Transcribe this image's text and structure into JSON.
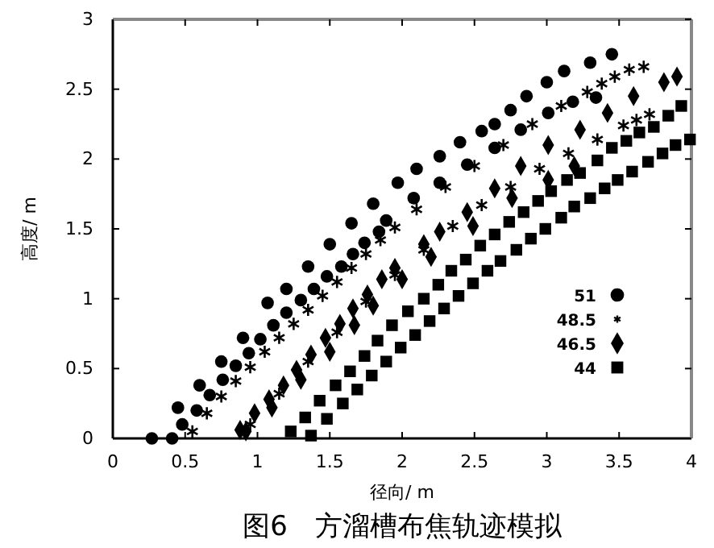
{
  "chart_data": {
    "type": "scatter",
    "title": "图6　方溜槽布焦轨迹模拟",
    "xlabel": "径向/ m",
    "ylabel": "高度/ m",
    "xlim": [
      0,
      4
    ],
    "ylim": [
      0,
      3
    ],
    "xticks": [
      0,
      0.5,
      1,
      1.5,
      2,
      2.5,
      3,
      3.5,
      4
    ],
    "yticks": [
      0,
      0.5,
      1,
      1.5,
      2,
      2.5,
      3
    ],
    "legend": "bottom right",
    "grid": false,
    "series": [
      {
        "name": "51",
        "color": "#000000",
        "marker": "circle",
        "x": [
          0.27,
          0.45,
          0.6,
          0.75,
          0.9,
          1.07,
          1.2,
          1.35,
          1.5,
          1.65,
          1.8,
          1.97,
          2.1,
          2.26,
          2.4,
          2.55,
          2.64,
          2.75,
          2.86,
          3.0,
          3.12,
          3.3,
          3.45,
          0.41,
          0.48,
          0.58,
          0.67,
          0.76,
          0.85,
          0.94,
          1.02,
          1.11,
          1.2,
          1.3,
          1.39,
          1.48,
          1.58,
          1.66,
          1.74,
          1.84,
          1.89,
          2.08,
          2.26,
          2.45,
          2.64,
          2.82,
          3.01,
          3.18,
          3.34
        ],
        "values": [
          0,
          0.22,
          0.38,
          0.55,
          0.72,
          0.97,
          1.07,
          1.23,
          1.39,
          1.54,
          1.68,
          1.83,
          1.93,
          2.02,
          2.12,
          2.2,
          2.25,
          2.35,
          2.45,
          2.55,
          2.63,
          2.69,
          2.75,
          0,
          0.1,
          0.2,
          0.31,
          0.42,
          0.52,
          0.61,
          0.71,
          0.81,
          0.9,
          0.99,
          1.07,
          1.16,
          1.23,
          1.32,
          1.4,
          1.48,
          1.56,
          1.72,
          1.83,
          1.96,
          2.08,
          2.21,
          2.33,
          2.41,
          2.44
        ]
      },
      {
        "name": "48.5",
        "color": "#000000",
        "marker": "cross",
        "x": [
          0.55,
          0.65,
          0.75,
          0.85,
          0.95,
          1.05,
          1.15,
          1.25,
          1.35,
          1.45,
          1.55,
          1.65,
          1.75,
          1.85,
          1.95,
          2.1,
          2.3,
          2.5,
          2.7,
          2.9,
          3.1,
          3.28,
          3.38,
          3.47,
          3.57,
          3.67,
          0.95,
          1.15,
          1.35,
          1.55,
          1.75,
          1.95,
          2.15,
          2.35,
          2.55,
          2.75,
          2.95,
          3.15,
          3.35,
          3.53,
          3.62,
          3.71
        ],
        "values": [
          0.05,
          0.18,
          0.3,
          0.41,
          0.51,
          0.62,
          0.72,
          0.82,
          0.92,
          1.02,
          1.12,
          1.22,
          1.32,
          1.42,
          1.51,
          1.64,
          1.8,
          1.95,
          2.1,
          2.25,
          2.38,
          2.48,
          2.54,
          2.59,
          2.64,
          2.66,
          0.1,
          0.32,
          0.55,
          0.76,
          0.98,
          1.17,
          1.35,
          1.52,
          1.67,
          1.8,
          1.93,
          2.04,
          2.14,
          2.24,
          2.28,
          2.32
        ]
      },
      {
        "name": "46.5",
        "color": "#000000",
        "marker": "diamond",
        "x": [
          0.88,
          0.98,
          1.08,
          1.18,
          1.27,
          1.37,
          1.47,
          1.57,
          1.66,
          1.76,
          1.86,
          1.95,
          2.15,
          2.26,
          2.45,
          2.64,
          2.82,
          3.01,
          3.23,
          3.42,
          3.6,
          3.81,
          3.9,
          0.92,
          1.1,
          1.3,
          1.5,
          1.67,
          1.8,
          2.0,
          2.2,
          2.49,
          2.76,
          3.01,
          3.19
        ],
        "values": [
          0.06,
          0.18,
          0.28,
          0.38,
          0.49,
          0.6,
          0.72,
          0.82,
          0.93,
          1.03,
          1.14,
          1.22,
          1.39,
          1.48,
          1.62,
          1.79,
          1.95,
          2.1,
          2.21,
          2.33,
          2.45,
          2.55,
          2.59,
          0.05,
          0.22,
          0.42,
          0.62,
          0.81,
          0.95,
          1.14,
          1.3,
          1.52,
          1.72,
          1.85,
          1.95
        ]
      },
      {
        "name": "44",
        "color": "#000000",
        "marker": "square",
        "x": [
          1.23,
          1.33,
          1.43,
          1.54,
          1.64,
          1.74,
          1.83,
          1.93,
          2.04,
          2.15,
          2.25,
          2.34,
          2.44,
          2.54,
          2.64,
          2.74,
          2.84,
          2.94,
          3.03,
          3.14,
          3.23,
          3.35,
          3.45,
          3.55,
          3.64,
          3.74,
          3.84,
          3.93,
          1.37,
          1.48,
          1.59,
          1.69,
          1.79,
          1.89,
          1.99,
          2.09,
          2.19,
          2.29,
          2.39,
          2.49,
          2.59,
          2.68,
          2.79,
          2.89,
          2.99,
          3.1,
          3.19,
          3.3,
          3.4,
          3.49,
          3.59,
          3.7,
          3.8,
          3.89,
          3.99
        ],
        "values": [
          0.05,
          0.15,
          0.27,
          0.38,
          0.48,
          0.59,
          0.7,
          0.81,
          0.91,
          1.0,
          1.1,
          1.2,
          1.28,
          1.38,
          1.46,
          1.55,
          1.62,
          1.7,
          1.77,
          1.85,
          1.9,
          1.99,
          2.08,
          2.13,
          2.19,
          2.23,
          2.31,
          2.38,
          0.02,
          0.14,
          0.25,
          0.35,
          0.45,
          0.55,
          0.65,
          0.74,
          0.84,
          0.93,
          1.02,
          1.11,
          1.2,
          1.27,
          1.35,
          1.43,
          1.5,
          1.58,
          1.66,
          1.72,
          1.79,
          1.85,
          1.91,
          1.98,
          2.04,
          2.1,
          2.14
        ]
      }
    ]
  }
}
